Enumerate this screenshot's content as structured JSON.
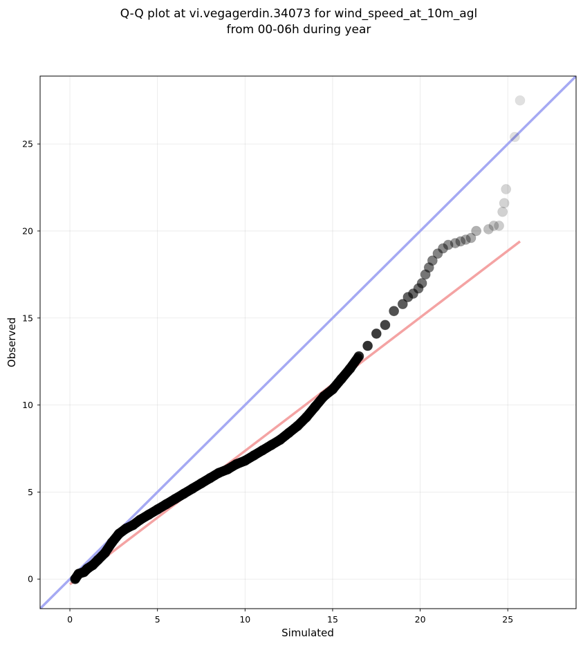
{
  "chart_data": {
    "type": "scatter",
    "title": "Q-Q plot at vi.vegagerdin.34073 for wind_speed_at_10m_agl",
    "subtitle": "from 00-06h during year",
    "xlabel": "Simulated",
    "ylabel": "Observed",
    "xlim": [
      -1.7,
      28.9
    ],
    "ylim": [
      -1.7,
      28.9
    ],
    "grid": true,
    "x_ticks": [
      0,
      5,
      10,
      15,
      20,
      25
    ],
    "y_ticks": [
      0,
      5,
      10,
      15,
      20,
      25
    ],
    "identity_line": {
      "color": "#a5a9f3",
      "from": [
        -1.7,
        -1.7
      ],
      "to": [
        28.9,
        28.9
      ]
    },
    "fit_line": {
      "color": "#f4a3a3",
      "from": [
        0.0,
        -0.3
      ],
      "to": [
        25.7,
        19.4
      ]
    },
    "points_color": "#000000",
    "series": [
      {
        "x": [
          0.3,
          0.5,
          0.8,
          1.0,
          1.3,
          1.6,
          2.0,
          2.4,
          2.8,
          3.2,
          3.6,
          4.0,
          4.5,
          5.0,
          5.5,
          6.0,
          6.5,
          7.0,
          7.5,
          8.0,
          8.5,
          9.0,
          9.5,
          10.0,
          10.5,
          11.0,
          11.5,
          12.0,
          12.5,
          13.0,
          13.5,
          14.0,
          14.5,
          15.0,
          15.5,
          16.0,
          16.5,
          17.0,
          17.5,
          18.0,
          18.5,
          19.0,
          19.3,
          19.6,
          19.9,
          20.1,
          20.3,
          20.5,
          20.7,
          21.0,
          21.3,
          21.6,
          22.0,
          22.3,
          22.6,
          22.9,
          23.2,
          23.9,
          24.2,
          24.5,
          24.7,
          24.8,
          24.9,
          25.4,
          25.7
        ],
        "y": [
          0.0,
          0.3,
          0.4,
          0.6,
          0.8,
          1.1,
          1.5,
          2.1,
          2.6,
          2.9,
          3.1,
          3.4,
          3.7,
          4.0,
          4.3,
          4.6,
          4.9,
          5.2,
          5.5,
          5.8,
          6.1,
          6.3,
          6.6,
          6.8,
          7.1,
          7.4,
          7.7,
          8.0,
          8.4,
          8.8,
          9.3,
          9.9,
          10.5,
          10.9,
          11.5,
          12.1,
          12.8,
          13.4,
          14.1,
          14.6,
          15.4,
          15.8,
          16.2,
          16.4,
          16.7,
          17.0,
          17.5,
          17.9,
          18.3,
          18.7,
          19.0,
          19.2,
          19.3,
          19.4,
          19.5,
          19.6,
          20.0,
          20.1,
          20.3,
          20.3,
          21.1,
          21.6,
          22.4,
          25.4,
          27.5
        ]
      }
    ]
  }
}
